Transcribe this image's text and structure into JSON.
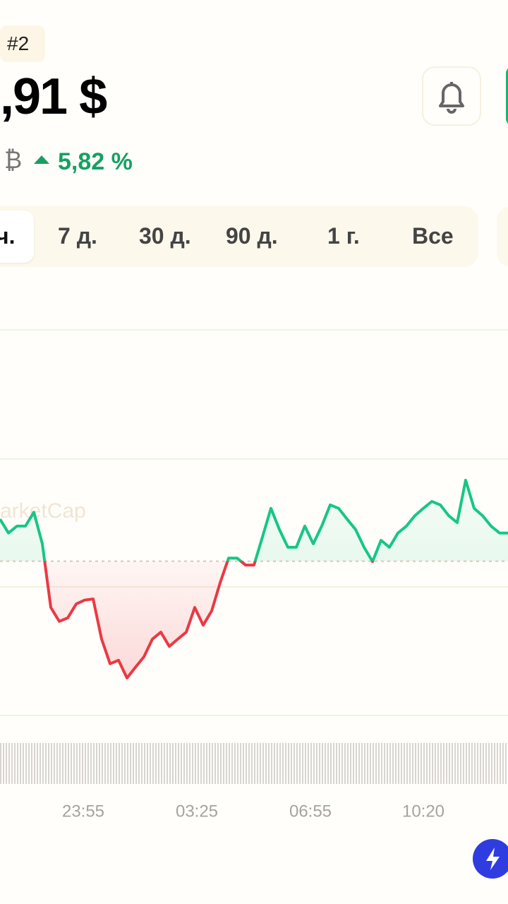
{
  "header": {
    "rank": "#2",
    "price": ",91 $",
    "currency": "₿",
    "change": "5,82 %"
  },
  "tabs": [
    "ч.",
    "7 д.",
    "30 д.",
    "90 д.",
    "1 г.",
    "Все"
  ],
  "chart_data": {
    "type": "line",
    "watermark": "arketCap",
    "values": [
      50.9,
      47.3,
      49.1,
      49.1,
      52.7,
      44.5,
      28.0,
      24.4,
      25.3,
      28.9,
      29.9,
      30.2,
      19.8,
      13.4,
      14.3,
      9.7,
      12.5,
      15.2,
      19.8,
      21.6,
      17.9,
      19.8,
      21.6,
      28.0,
      23.4,
      27.1,
      34.4,
      40.8,
      40.8,
      39.0,
      39.0,
      46.3,
      53.7,
      48.2,
      43.6,
      43.6,
      49.1,
      44.5,
      49.1,
      54.6,
      53.7,
      50.9,
      48.2,
      43.6,
      39.9,
      45.4,
      43.6,
      47.3,
      49.1,
      51.8,
      53.7,
      55.5,
      54.6,
      51.8,
      50.0,
      61.0,
      53.7,
      51.8,
      49.1,
      47.3,
      47.3
    ],
    "ylim": [
      0,
      100
    ],
    "baseline": 40,
    "up_color": "#16c784",
    "down_color": "#ea3943",
    "x_labels": [
      "23:55",
      "03:25",
      "06:55",
      "10:20"
    ]
  }
}
